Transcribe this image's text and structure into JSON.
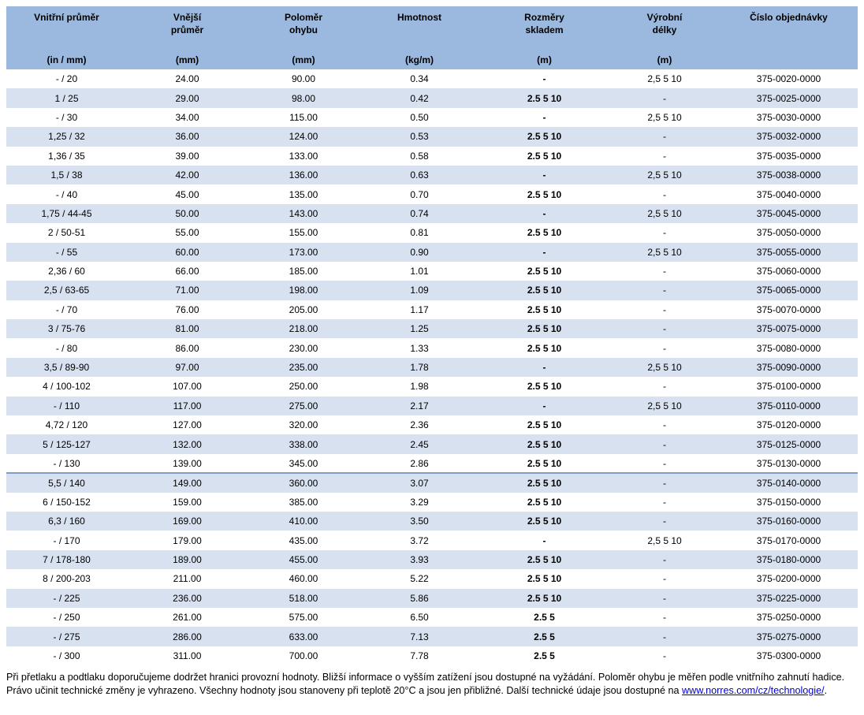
{
  "colors": {
    "header_bg": "#9bb8de",
    "row_alt_bg": "#d8e1f0",
    "divider_line": "#7d9dc8",
    "link_blue": "#0000d0"
  },
  "table": {
    "columns": [
      {
        "label": "Vnitřní průměr",
        "unit": "(in / mm)"
      },
      {
        "label": "Vnější\nprůměr",
        "unit": "(mm)"
      },
      {
        "label": "Poloměr\nohybu",
        "unit": "(mm)"
      },
      {
        "label": "Hmotnost",
        "unit": "(kg/m)"
      },
      {
        "label": "Rozměry\nskladem",
        "unit": "(m)"
      },
      {
        "label": "Výrobní\ndélky",
        "unit": "(m)"
      },
      {
        "label": "Číslo objednávky",
        "unit": ""
      }
    ],
    "divider_row_index": 21,
    "rows": [
      [
        "- / 20",
        "24.00",
        "90.00",
        "0.34",
        "-",
        "2,5 5 10",
        "375-0020-0000"
      ],
      [
        "1 / 25",
        "29.00",
        "98.00",
        "0.42",
        "2.5 5 10",
        "-",
        "375-0025-0000"
      ],
      [
        "- / 30",
        "34.00",
        "115.00",
        "0.50",
        "-",
        "2,5 5 10",
        "375-0030-0000"
      ],
      [
        "1,25 / 32",
        "36.00",
        "124.00",
        "0.53",
        "2.5 5 10",
        "-",
        "375-0032-0000"
      ],
      [
        "1,36 / 35",
        "39.00",
        "133.00",
        "0.58",
        "2.5 5 10",
        "-",
        "375-0035-0000"
      ],
      [
        "1,5 / 38",
        "42.00",
        "136.00",
        "0.63",
        "-",
        "2,5 5 10",
        "375-0038-0000"
      ],
      [
        "- / 40",
        "45.00",
        "135.00",
        "0.70",
        "2.5 5 10",
        "-",
        "375-0040-0000"
      ],
      [
        "1,75 / 44-45",
        "50.00",
        "143.00",
        "0.74",
        "-",
        "2,5 5 10",
        "375-0045-0000"
      ],
      [
        "2 / 50-51",
        "55.00",
        "155.00",
        "0.81",
        "2.5 5 10",
        "-",
        "375-0050-0000"
      ],
      [
        "- / 55",
        "60.00",
        "173.00",
        "0.90",
        "-",
        "2,5 5 10",
        "375-0055-0000"
      ],
      [
        "2,36 / 60",
        "66.00",
        "185.00",
        "1.01",
        "2.5 5 10",
        "-",
        "375-0060-0000"
      ],
      [
        "2,5 / 63-65",
        "71.00",
        "198.00",
        "1.09",
        "2.5 5 10",
        "-",
        "375-0065-0000"
      ],
      [
        "- / 70",
        "76.00",
        "205.00",
        "1.17",
        "2.5 5 10",
        "-",
        "375-0070-0000"
      ],
      [
        "3 / 75-76",
        "81.00",
        "218.00",
        "1.25",
        "2.5 5 10",
        "-",
        "375-0075-0000"
      ],
      [
        "- / 80",
        "86.00",
        "230.00",
        "1.33",
        "2.5 5 10",
        "-",
        "375-0080-0000"
      ],
      [
        "3,5 / 89-90",
        "97.00",
        "235.00",
        "1.78",
        "-",
        "2,5 5 10",
        "375-0090-0000"
      ],
      [
        "4 / 100-102",
        "107.00",
        "250.00",
        "1.98",
        "2.5 5 10",
        "-",
        "375-0100-0000"
      ],
      [
        "- / 110",
        "117.00",
        "275.00",
        "2.17",
        "-",
        "2,5 5 10",
        "375-0110-0000"
      ],
      [
        "4,72 / 120",
        "127.00",
        "320.00",
        "2.36",
        "2.5 5 10",
        "-",
        "375-0120-0000"
      ],
      [
        "5 / 125-127",
        "132.00",
        "338.00",
        "2.45",
        "2.5 5 10",
        "-",
        "375-0125-0000"
      ],
      [
        "- / 130",
        "139.00",
        "345.00",
        "2.86",
        "2.5 5 10",
        "-",
        "375-0130-0000"
      ],
      [
        "5,5 / 140",
        "149.00",
        "360.00",
        "3.07",
        "2.5 5 10",
        "-",
        "375-0140-0000"
      ],
      [
        "6 / 150-152",
        "159.00",
        "385.00",
        "3.29",
        "2.5 5 10",
        "-",
        "375-0150-0000"
      ],
      [
        "6,3 / 160",
        "169.00",
        "410.00",
        "3.50",
        "2.5 5 10",
        "-",
        "375-0160-0000"
      ],
      [
        "- / 170",
        "179.00",
        "435.00",
        "3.72",
        "-",
        "2,5 5 10",
        "375-0170-0000"
      ],
      [
        "7 / 178-180",
        "189.00",
        "455.00",
        "3.93",
        "2.5 5 10",
        "-",
        "375-0180-0000"
      ],
      [
        "8 / 200-203",
        "211.00",
        "460.00",
        "5.22",
        "2.5 5 10",
        "-",
        "375-0200-0000"
      ],
      [
        "- / 225",
        "236.00",
        "518.00",
        "5.86",
        "2.5 5 10",
        "-",
        "375-0225-0000"
      ],
      [
        "- / 250",
        "261.00",
        "575.00",
        "6.50",
        "2.5 5",
        "-",
        "375-0250-0000"
      ],
      [
        "- / 275",
        "286.00",
        "633.00",
        "7.13",
        "2.5 5",
        "-",
        "375-0275-0000"
      ],
      [
        "- / 300",
        "311.00",
        "700.00",
        "7.78",
        "2.5 5",
        "-",
        "375-0300-0000"
      ]
    ]
  },
  "footer": {
    "text": "Při přetlaku a podtlaku doporučujeme dodržet hranici provozní hodnoty. Bližší informace o vyšším zatížení jsou dostupné na vyžádání. Poloměr ohybu je měřen podle vnitřního zahnutí hadice. Právo učinit technické změny je vyhrazeno. Všechny hodnoty jsou stanoveny při teplotě 20°C a jsou jen přibližné. Další technické údaje jsou dostupné na ",
    "link": "www.norres.com/cz/technologie/",
    "suffix": "."
  }
}
